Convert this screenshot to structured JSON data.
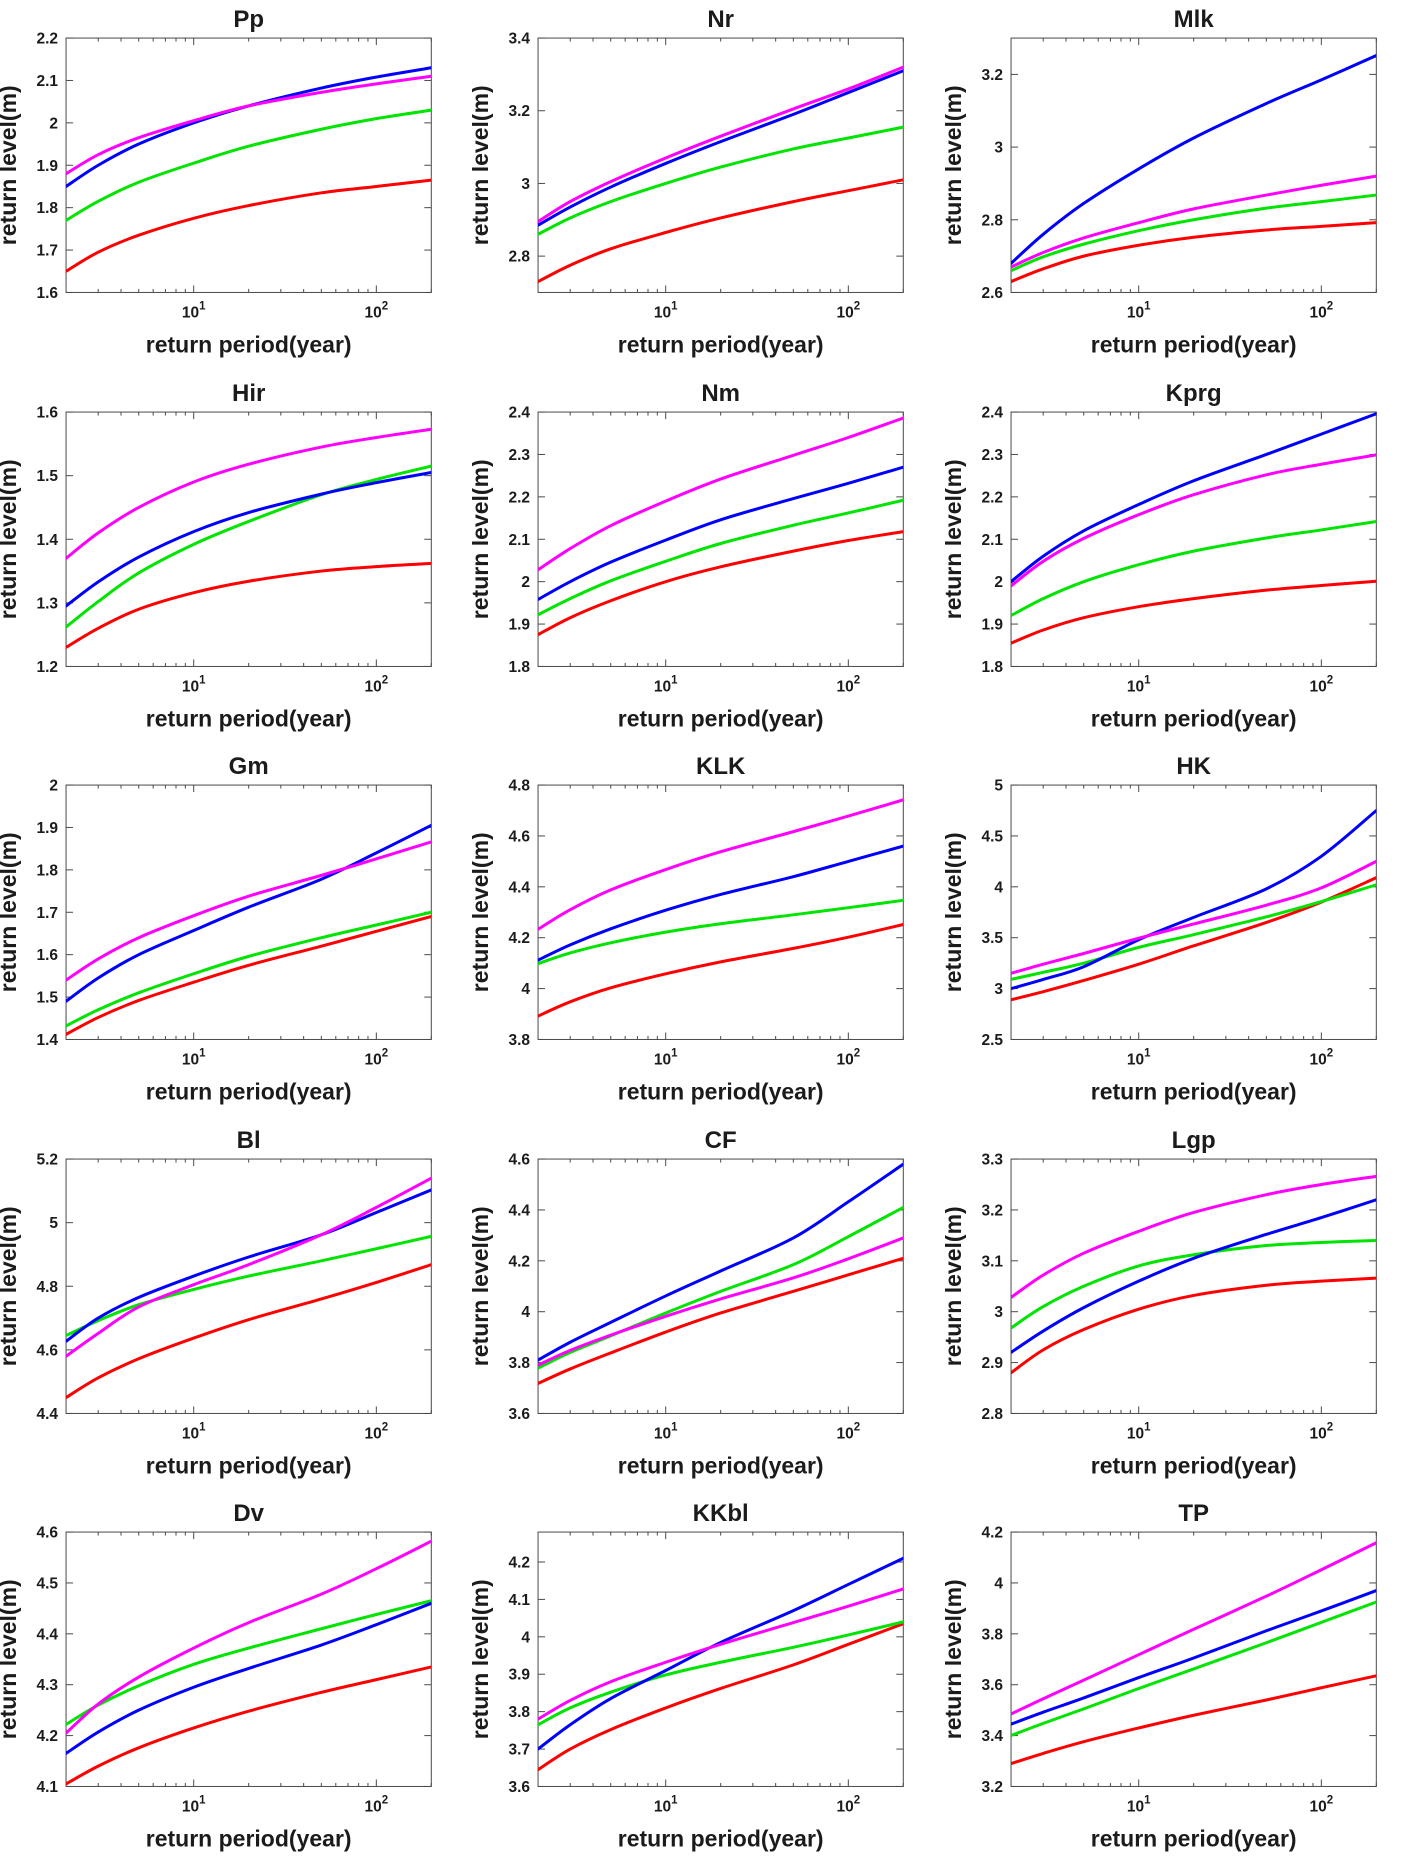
{
  "figure": {
    "xlabel": "return period(year)",
    "ylabel": "return level(m)",
    "x_scale": "log",
    "xlim": [
      2,
      200
    ],
    "x_major_ticks": [
      {
        "value": 10,
        "base": "10",
        "exp": "1"
      },
      {
        "value": 100,
        "base": "10",
        "exp": "2"
      }
    ],
    "x_minor_ticks": [
      3,
      4,
      5,
      6,
      7,
      8,
      9,
      20,
      30,
      40,
      50,
      60,
      70,
      80,
      90,
      200
    ],
    "series_order": [
      "red",
      "green",
      "blue",
      "magenta"
    ],
    "series_colors": {
      "red": "#ff0000",
      "green": "#00e400",
      "blue": "#0000ff",
      "magenta": "#ff00ff"
    }
  },
  "chart_data": [
    {
      "type": "line",
      "title": "Pp",
      "xlabel": "return period(year)",
      "ylabel": "return level(m)",
      "x": [
        2,
        3,
        5,
        10,
        20,
        50,
        100,
        200
      ],
      "ylim": [
        1.6,
        2.2
      ],
      "yticks": [
        1.6,
        1.7,
        1.8,
        1.9,
        2,
        2.1,
        2.2
      ],
      "series": {
        "red": [
          1.65,
          1.695,
          1.735,
          1.775,
          1.805,
          1.835,
          1.85,
          1.865
        ],
        "green": [
          1.77,
          1.815,
          1.86,
          1.905,
          1.945,
          1.985,
          2.01,
          2.03
        ],
        "blue": [
          1.85,
          1.9,
          1.95,
          2.0,
          2.04,
          2.082,
          2.108,
          2.13
        ],
        "magenta": [
          1.88,
          1.925,
          1.965,
          2.005,
          2.04,
          2.072,
          2.092,
          2.11
        ]
      }
    },
    {
      "type": "line",
      "title": "Nr",
      "xlabel": "return period(year)",
      "ylabel": "return level(m)",
      "x": [
        2,
        3,
        5,
        10,
        20,
        50,
        100,
        200
      ],
      "ylim": [
        2.7,
        3.4
      ],
      "yticks": [
        2.8,
        3,
        3.2,
        3.4
      ],
      "series": {
        "red": [
          2.73,
          2.775,
          2.82,
          2.865,
          2.905,
          2.95,
          2.98,
          3.01
        ],
        "green": [
          2.86,
          2.905,
          2.95,
          3.0,
          3.045,
          3.095,
          3.125,
          3.155
        ],
        "blue": [
          2.885,
          2.935,
          2.99,
          3.055,
          3.115,
          3.19,
          3.25,
          3.31
        ],
        "magenta": [
          2.895,
          2.95,
          3.005,
          3.07,
          3.13,
          3.205,
          3.26,
          3.32
        ]
      }
    },
    {
      "type": "line",
      "title": "Mlk",
      "xlabel": "return period(year)",
      "ylabel": "return level(m)",
      "x": [
        2,
        3,
        5,
        10,
        20,
        50,
        100,
        200
      ],
      "ylim": [
        2.6,
        3.3
      ],
      "yticks": [
        2.6,
        2.8,
        3,
        3.2
      ],
      "series": {
        "red": [
          2.63,
          2.665,
          2.7,
          2.73,
          2.752,
          2.772,
          2.782,
          2.792
        ],
        "green": [
          2.66,
          2.698,
          2.733,
          2.77,
          2.8,
          2.832,
          2.85,
          2.868
        ],
        "blue": [
          2.68,
          2.76,
          2.845,
          2.94,
          3.025,
          3.12,
          3.185,
          3.252
        ],
        "magenta": [
          2.67,
          2.71,
          2.75,
          2.792,
          2.83,
          2.868,
          2.895,
          2.92
        ]
      }
    },
    {
      "type": "line",
      "title": "Hir",
      "xlabel": "return period(year)",
      "ylabel": "return level(m)",
      "x": [
        2,
        3,
        5,
        10,
        20,
        50,
        100,
        200
      ],
      "ylim": [
        1.2,
        1.6
      ],
      "yticks": [
        1.2,
        1.3,
        1.4,
        1.5,
        1.6
      ],
      "series": {
        "red": [
          1.23,
          1.26,
          1.29,
          1.316,
          1.334,
          1.35,
          1.357,
          1.362
        ],
        "green": [
          1.262,
          1.302,
          1.347,
          1.392,
          1.428,
          1.47,
          1.494,
          1.515
        ],
        "blue": [
          1.295,
          1.333,
          1.372,
          1.412,
          1.442,
          1.471,
          1.489,
          1.505
        ],
        "magenta": [
          1.37,
          1.41,
          1.45,
          1.49,
          1.518,
          1.545,
          1.56,
          1.573
        ]
      }
    },
    {
      "type": "line",
      "title": "Nm",
      "xlabel": "return period(year)",
      "ylabel": "return level(m)",
      "x": [
        2,
        3,
        5,
        10,
        20,
        50,
        100,
        200
      ],
      "ylim": [
        1.8,
        2.4
      ],
      "yticks": [
        1.8,
        1.9,
        2,
        2.1,
        2.2,
        2.3,
        2.4
      ],
      "series": {
        "red": [
          1.875,
          1.915,
          1.955,
          2.0,
          2.035,
          2.072,
          2.097,
          2.118
        ],
        "green": [
          1.922,
          1.96,
          2.002,
          2.048,
          2.09,
          2.133,
          2.162,
          2.192
        ],
        "blue": [
          1.958,
          2.0,
          2.046,
          2.098,
          2.146,
          2.196,
          2.232,
          2.27
        ],
        "magenta": [
          2.028,
          2.078,
          2.132,
          2.19,
          2.242,
          2.298,
          2.34,
          2.386
        ]
      }
    },
    {
      "type": "line",
      "title": "Kprg",
      "xlabel": "return period(year)",
      "ylabel": "return level(m)",
      "x": [
        2,
        3,
        5,
        10,
        20,
        50,
        100,
        200
      ],
      "ylim": [
        1.8,
        2.4
      ],
      "yticks": [
        1.8,
        1.9,
        2,
        2.1,
        2.2,
        2.3,
        2.4
      ],
      "series": {
        "red": [
          1.855,
          1.886,
          1.915,
          1.941,
          1.96,
          1.98,
          1.991,
          2.001
        ],
        "green": [
          1.92,
          1.96,
          2.0,
          2.04,
          2.072,
          2.103,
          2.122,
          2.142
        ],
        "blue": [
          2.0,
          2.06,
          2.12,
          2.182,
          2.238,
          2.3,
          2.348,
          2.396
        ],
        "magenta": [
          1.99,
          2.048,
          2.102,
          2.158,
          2.205,
          2.252,
          2.277,
          2.299
        ]
      }
    },
    {
      "type": "line",
      "title": "Gm",
      "xlabel": "return period(year)",
      "ylabel": "return level(m)",
      "x": [
        2,
        3,
        5,
        10,
        20,
        50,
        100,
        200
      ],
      "ylim": [
        1.4,
        2
      ],
      "yticks": [
        1.4,
        1.5,
        1.6,
        1.7,
        1.8,
        1.9,
        2
      ],
      "series": {
        "red": [
          1.412,
          1.452,
          1.492,
          1.535,
          1.575,
          1.62,
          1.655,
          1.69
        ],
        "green": [
          1.432,
          1.47,
          1.51,
          1.555,
          1.596,
          1.64,
          1.67,
          1.7
        ],
        "blue": [
          1.49,
          1.545,
          1.6,
          1.657,
          1.712,
          1.778,
          1.84,
          1.905
        ],
        "magenta": [
          1.54,
          1.59,
          1.64,
          1.692,
          1.738,
          1.787,
          1.826,
          1.866
        ]
      }
    },
    {
      "type": "line",
      "title": "KLK",
      "xlabel": "return period(year)",
      "ylabel": "return level(m)",
      "x": [
        2,
        3,
        5,
        10,
        20,
        50,
        100,
        200
      ],
      "ylim": [
        3.8,
        4.8
      ],
      "yticks": [
        3.8,
        4,
        4.2,
        4.4,
        4.6,
        4.8
      ],
      "series": {
        "red": [
          3.892,
          3.948,
          4.003,
          4.058,
          4.105,
          4.158,
          4.202,
          4.252
        ],
        "green": [
          4.098,
          4.14,
          4.18,
          4.222,
          4.255,
          4.29,
          4.318,
          4.347
        ],
        "blue": [
          4.112,
          4.172,
          4.235,
          4.308,
          4.37,
          4.44,
          4.5,
          4.56
        ],
        "magenta": [
          4.233,
          4.31,
          4.388,
          4.468,
          4.538,
          4.617,
          4.678,
          4.742
        ]
      }
    },
    {
      "type": "line",
      "title": "HK",
      "xlabel": "return period(year)",
      "ylabel": "return level(m)",
      "x": [
        2,
        3,
        5,
        10,
        20,
        50,
        100,
        200
      ],
      "ylim": [
        2.5,
        5
      ],
      "yticks": [
        2.5,
        3,
        3.5,
        4,
        4.5,
        5
      ],
      "series": {
        "red": [
          2.89,
          2.97,
          3.08,
          3.24,
          3.42,
          3.65,
          3.85,
          4.09
        ],
        "green": [
          3.09,
          3.16,
          3.25,
          3.405,
          3.53,
          3.705,
          3.855,
          4.02
        ],
        "blue": [
          3.0,
          3.09,
          3.215,
          3.48,
          3.7,
          3.98,
          4.3,
          4.75
        ],
        "magenta": [
          3.15,
          3.24,
          3.345,
          3.495,
          3.635,
          3.82,
          3.99,
          4.25
        ]
      }
    },
    {
      "type": "line",
      "title": "Bl",
      "xlabel": "return period(year)",
      "ylabel": "return level(m)",
      "x": [
        2,
        3,
        5,
        10,
        20,
        50,
        100,
        200
      ],
      "ylim": [
        4.4,
        5.2
      ],
      "yticks": [
        4.4,
        4.6,
        4.8,
        5,
        5.2
      ],
      "series": {
        "red": [
          4.45,
          4.512,
          4.572,
          4.637,
          4.695,
          4.76,
          4.812,
          4.868
        ],
        "green": [
          4.645,
          4.692,
          4.742,
          4.79,
          4.832,
          4.88,
          4.918,
          4.957
        ],
        "blue": [
          4.627,
          4.7,
          4.765,
          4.832,
          4.892,
          4.962,
          5.032,
          5.103
        ],
        "magenta": [
          4.58,
          4.652,
          4.735,
          4.805,
          4.868,
          4.962,
          5.048,
          5.14
        ]
      }
    },
    {
      "type": "line",
      "title": "CF",
      "xlabel": "return period(year)",
      "ylabel": "return level(m)",
      "x": [
        2,
        3,
        5,
        10,
        20,
        50,
        100,
        200
      ],
      "ylim": [
        3.6,
        4.6
      ],
      "yticks": [
        3.6,
        3.8,
        4,
        4.2,
        4.4,
        4.6
      ],
      "series": {
        "red": [
          3.718,
          3.775,
          3.838,
          3.92,
          3.995,
          4.08,
          4.145,
          4.21
        ],
        "green": [
          3.778,
          3.84,
          3.905,
          3.995,
          4.08,
          4.185,
          4.295,
          4.41
        ],
        "blue": [
          3.81,
          3.88,
          3.958,
          4.062,
          4.16,
          4.29,
          4.432,
          4.58
        ],
        "magenta": [
          3.79,
          3.848,
          3.908,
          3.982,
          4.05,
          4.133,
          4.208,
          4.29
        ]
      }
    },
    {
      "type": "line",
      "title": "Lgp",
      "xlabel": "return period(year)",
      "ylabel": "return level(m)",
      "x": [
        2,
        3,
        5,
        10,
        20,
        50,
        100,
        200
      ],
      "ylim": [
        2.8,
        3.3
      ],
      "yticks": [
        2.8,
        2.9,
        3,
        3.1,
        3.2,
        3.3
      ],
      "series": {
        "red": [
          2.88,
          2.925,
          2.965,
          3.005,
          3.032,
          3.052,
          3.06,
          3.066
        ],
        "green": [
          2.968,
          3.01,
          3.05,
          3.09,
          3.112,
          3.13,
          3.136,
          3.14
        ],
        "blue": [
          2.92,
          2.962,
          3.008,
          3.06,
          3.105,
          3.152,
          3.185,
          3.22
        ],
        "magenta": [
          3.028,
          3.072,
          3.115,
          3.158,
          3.195,
          3.23,
          3.25,
          3.266
        ]
      }
    },
    {
      "type": "line",
      "title": "Dv",
      "xlabel": "return period(year)",
      "ylabel": "return level(m)",
      "x": [
        2,
        3,
        5,
        10,
        20,
        50,
        100,
        200
      ],
      "ylim": [
        4.1,
        4.6
      ],
      "yticks": [
        4.1,
        4.2,
        4.3,
        4.4,
        4.5,
        4.6
      ],
      "series": {
        "red": [
          4.105,
          4.14,
          4.176,
          4.215,
          4.248,
          4.285,
          4.31,
          4.335
        ],
        "green": [
          4.222,
          4.26,
          4.298,
          4.34,
          4.372,
          4.41,
          4.438,
          4.465
        ],
        "blue": [
          4.165,
          4.207,
          4.25,
          4.295,
          4.332,
          4.378,
          4.418,
          4.46
        ],
        "magenta": [
          4.205,
          4.262,
          4.315,
          4.372,
          4.422,
          4.478,
          4.528,
          4.582
        ]
      }
    },
    {
      "type": "line",
      "title": "KKbl",
      "xlabel": "return period(year)",
      "ylabel": "return level(m)",
      "x": [
        2,
        3,
        5,
        10,
        20,
        50,
        100,
        200
      ],
      "ylim": [
        3.6,
        4.28
      ],
      "yticks": [
        3.6,
        3.7,
        3.8,
        3.9,
        4,
        4.1,
        4.2
      ],
      "series": {
        "red": [
          3.645,
          3.7,
          3.752,
          3.81,
          3.862,
          3.925,
          3.98,
          4.035
        ],
        "green": [
          3.765,
          3.81,
          3.852,
          3.898,
          3.932,
          3.972,
          4.005,
          4.04
        ],
        "blue": [
          3.7,
          3.765,
          3.835,
          3.91,
          3.985,
          4.07,
          4.14,
          4.21
        ],
        "magenta": [
          3.78,
          3.83,
          3.88,
          3.932,
          3.98,
          4.038,
          4.082,
          4.128
        ]
      }
    },
    {
      "type": "line",
      "title": "TP",
      "xlabel": "return period(year)",
      "ylabel": "return level(m)",
      "x": [
        2,
        3,
        5,
        10,
        20,
        50,
        100,
        200
      ],
      "ylim": [
        3.2,
        4.2
      ],
      "yticks": [
        3.2,
        3.4,
        3.6,
        3.8,
        4,
        4.2
      ],
      "series": {
        "red": [
          3.29,
          3.33,
          3.376,
          3.43,
          3.48,
          3.54,
          3.588,
          3.635
        ],
        "green": [
          3.4,
          3.448,
          3.505,
          3.585,
          3.662,
          3.765,
          3.845,
          3.925
        ],
        "blue": [
          3.445,
          3.492,
          3.548,
          3.628,
          3.705,
          3.812,
          3.89,
          3.97
        ],
        "magenta": [
          3.485,
          3.545,
          3.618,
          3.718,
          3.818,
          3.948,
          4.052,
          4.158
        ]
      }
    }
  ]
}
